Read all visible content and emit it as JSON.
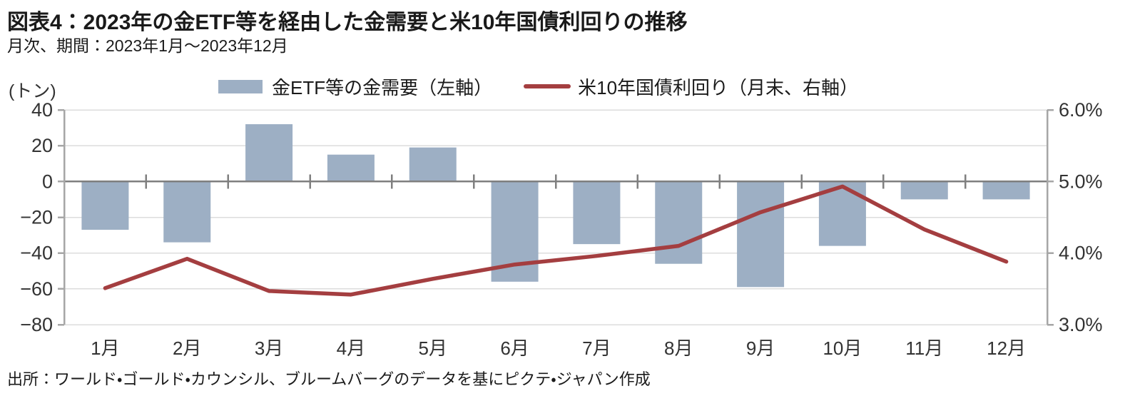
{
  "header": {
    "title": "図表4：2023年の金ETF等を経由した金需要と米10年国債利回りの推移",
    "subtitle": "月次、期間：2023年1月～2023年12月"
  },
  "source": "出所：ワールド・ゴールド・カウンシル、ブルームバーグのデータを基にピクテ・ジャパン作成",
  "chart_data": {
    "type": "bar",
    "subtype": "bar-and-line-combo",
    "categories": [
      "1月",
      "2月",
      "3月",
      "4月",
      "5月",
      "6月",
      "7月",
      "8月",
      "9月",
      "10月",
      "11月",
      "12月"
    ],
    "series": [
      {
        "name": "金ETF等の金需要（左軸）",
        "type": "bar",
        "axis": "left",
        "values": [
          -27,
          -34,
          32,
          15,
          19,
          -56,
          -35,
          -46,
          -59,
          -36,
          -10,
          -10
        ]
      },
      {
        "name": "米10年国債利回り（月末、右軸）",
        "type": "line",
        "axis": "right",
        "values": [
          3.51,
          3.92,
          3.47,
          3.42,
          3.64,
          3.84,
          3.96,
          4.1,
          4.57,
          4.93,
          4.33,
          3.88
        ]
      }
    ],
    "left_axis": {
      "unit_label": "(トン)",
      "ticks": [
        40,
        20,
        0,
        -20,
        -40,
        -60,
        -80
      ],
      "min": -80,
      "max": 40
    },
    "right_axis": {
      "tick_labels": [
        "6.0%",
        "5.0%",
        "4.0%",
        "3.0%"
      ],
      "tick_values": [
        6.0,
        5.0,
        4.0,
        3.0
      ],
      "min": 3.0,
      "max": 6.0
    },
    "grid": true,
    "legend_position": "top"
  },
  "colors": {
    "bar": "#9dafc4",
    "line": "#a43e40",
    "grid": "#dcdcdc",
    "zero_line": "#7f7f7f",
    "axis": "#a6a6a6",
    "tick_text": "#333333"
  }
}
